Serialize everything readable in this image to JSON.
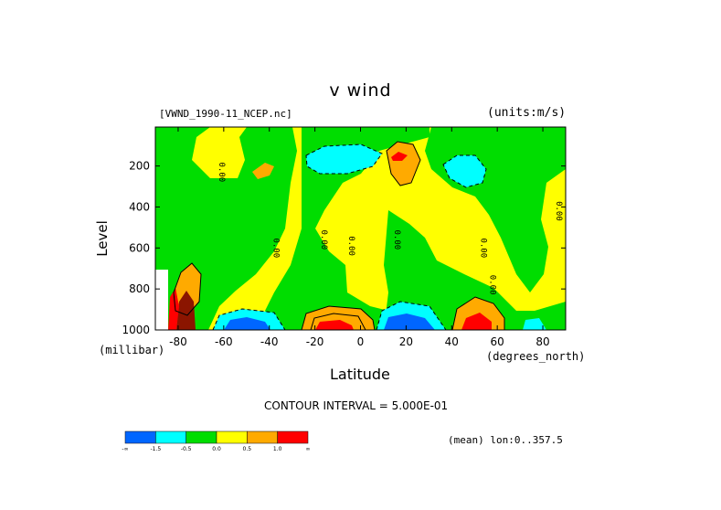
{
  "chart_data": {
    "type": "heatmap",
    "title": "v wind",
    "file_label": "[VWND_1990-11_NCEP.nc]",
    "units_label": "(units:m/s)",
    "xlabel": "Latitude",
    "x_units": "(degrees_north)",
    "ylabel": "Level",
    "y_units": "(millibar)",
    "xlim": [
      -90,
      90
    ],
    "ylim": [
      1000,
      10
    ],
    "x_ticks": [
      "-80",
      "-60",
      "-40",
      "-20",
      "0",
      "20",
      "40",
      "60",
      "80"
    ],
    "y_ticks": [
      "200",
      "400",
      "600",
      "800",
      "1000"
    ],
    "contour_interval_label": "CONTOUR INTERVAL = 5.000E-01",
    "mean_label": "(mean) lon:0..357.5",
    "colorbar": {
      "bins": [
        {
          "color": "#0066ff"
        },
        {
          "color": "#00ffff"
        },
        {
          "color": "#00dd00"
        },
        {
          "color": "#ffff00"
        },
        {
          "color": "#ffaa00"
        },
        {
          "color": "#ff0000"
        }
      ],
      "tick_labels": [
        "-∞",
        "-1.5",
        "-0.5",
        "0.0",
        "0.5",
        "1.0",
        "∞"
      ]
    },
    "contour_labels": [
      "0.00",
      "0.00",
      "0.00",
      "0.00",
      "0.00",
      "0.00",
      "0.00",
      "0.00"
    ],
    "regions": [
      {
        "lat": -15,
        "lev": 970,
        "value": 2.0
      },
      {
        "lat": 17,
        "lev": 960,
        "value": -2.0
      },
      {
        "lat": -57,
        "lev": 970,
        "value": -1.8
      },
      {
        "lat": 53,
        "lev": 960,
        "value": 1.2
      },
      {
        "lat": 17,
        "lev": 140,
        "value": 1.7
      },
      {
        "lat": -10,
        "lev": 150,
        "value": -1.2
      },
      {
        "lat": 42,
        "lev": 190,
        "value": -0.8
      },
      {
        "lat": -83,
        "lev": 800,
        "value": 1.8
      }
    ]
  }
}
